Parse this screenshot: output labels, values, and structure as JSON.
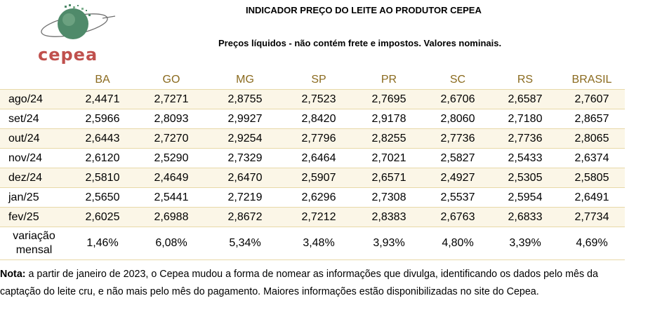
{
  "logo": {
    "text": "cepea"
  },
  "title": "INDICADOR PREÇO DO LEITE AO PRODUTOR CEPEA",
  "subtitle": "Preços líquidos - não contém frete e impostos. Valores nominais.",
  "table": {
    "columns": [
      "BA",
      "GO",
      "MG",
      "SP",
      "PR",
      "SC",
      "RS",
      "BRASIL"
    ],
    "rows": [
      {
        "label": "ago/24",
        "values": [
          "2,4471",
          "2,7271",
          "2,8755",
          "2,7523",
          "2,7695",
          "2,6706",
          "2,6587",
          "2,7607"
        ]
      },
      {
        "label": "set/24",
        "values": [
          "2,5966",
          "2,8093",
          "2,9927",
          "2,8420",
          "2,9178",
          "2,8060",
          "2,7180",
          "2,8657"
        ]
      },
      {
        "label": "out/24",
        "values": [
          "2,6443",
          "2,7270",
          "2,9254",
          "2,7796",
          "2,8255",
          "2,7736",
          "2,7736",
          "2,8065"
        ]
      },
      {
        "label": "nov/24",
        "values": [
          "2,6120",
          "2,5290",
          "2,7329",
          "2,6464",
          "2,7021",
          "2,5827",
          "2,5433",
          "2,6374"
        ]
      },
      {
        "label": "dez/24",
        "values": [
          "2,5810",
          "2,4649",
          "2,6470",
          "2,5907",
          "2,6571",
          "2,4927",
          "2,5305",
          "2,5805"
        ]
      },
      {
        "label": "jan/25",
        "values": [
          "2,5650",
          "2,5441",
          "2,7219",
          "2,6296",
          "2,7308",
          "2,5537",
          "2,5954",
          "2,6491"
        ]
      },
      {
        "label": "fev/25",
        "values": [
          "2,6025",
          "2,6988",
          "2,8672",
          "2,7212",
          "2,8383",
          "2,6763",
          "2,6833",
          "2,7734"
        ]
      }
    ],
    "variation": {
      "label_line1": "variação",
      "label_line2": "mensal",
      "values": [
        "1,46%",
        "6,08%",
        "5,34%",
        "3,48%",
        "3,93%",
        "4,80%",
        "3,39%",
        "4,69%"
      ]
    }
  },
  "note": {
    "prefix": "Nota:",
    "text": " a partir de janeiro de 2023, o Cepea mudou a forma de nomear as informações que divulga, identificando os dados pelo mês da captação do leite cru, e não mais pelo mês do pagamento. Maiores informações estão disponibilizadas no site do Cepea."
  },
  "colors": {
    "logo_text": "#c0504d",
    "globe": "#4f8a6a",
    "header_text": "#8a6a1e",
    "row_band": "#fbf6e7"
  }
}
